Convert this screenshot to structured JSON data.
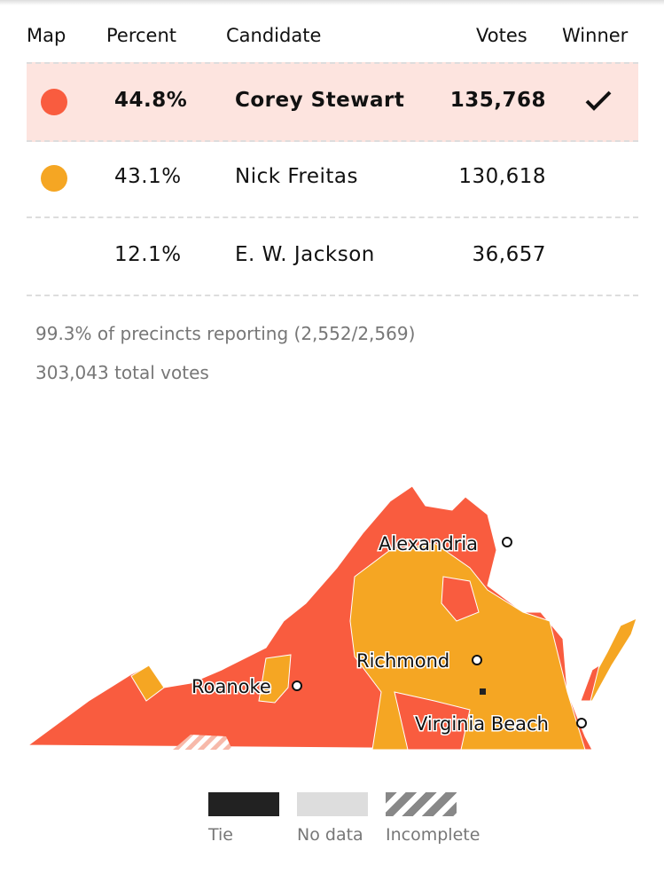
{
  "header": {
    "columns": [
      "Map",
      "Percent",
      "Candidate",
      "Votes",
      "Winner"
    ]
  },
  "table": {
    "rows": [
      {
        "color": "#f95c3f",
        "percent": "44.8%",
        "candidate": "Corey Stewart",
        "votes": "135,768",
        "winner": true,
        "highlight": true
      },
      {
        "color": "#f5a623",
        "percent": "43.1%",
        "candidate": "Nick Freitas",
        "votes": "130,618",
        "winner": false,
        "highlight": false
      },
      {
        "percent": "12.1%",
        "candidate": "E. W. Jackson",
        "votes": "36,657",
        "winner": false,
        "highlight": false
      }
    ]
  },
  "summary": {
    "reporting": "99.3% of precincts reporting (2,552/2,569)",
    "total": "303,043 total votes"
  },
  "map": {
    "cities": [
      "Alexandria",
      "Richmond",
      "Roanoke",
      "Virginia Beach"
    ]
  },
  "legend": {
    "items": [
      "Tie",
      "No data",
      "Incomplete"
    ]
  }
}
